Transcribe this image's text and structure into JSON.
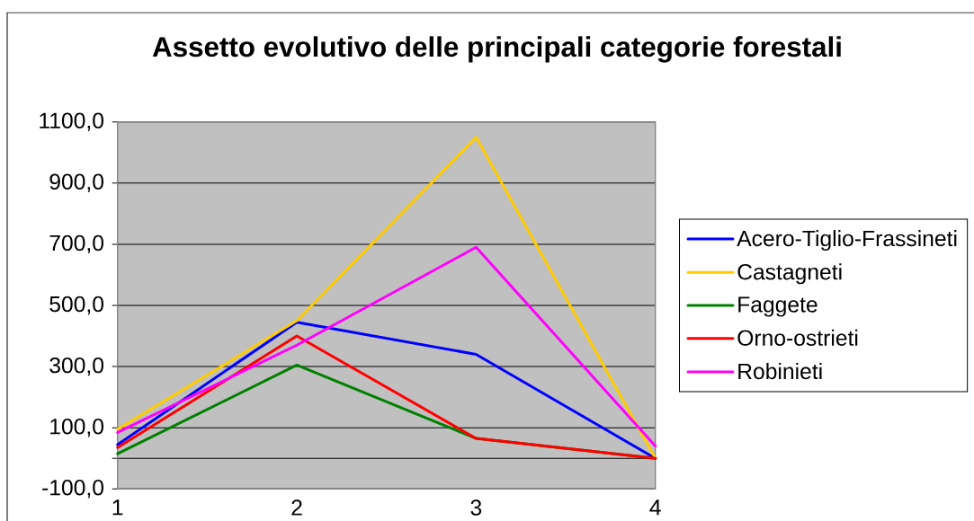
{
  "chart_data": {
    "type": "line",
    "title": "Assetto evolutivo delle principali categorie forestali",
    "categories": [
      "1",
      "2",
      "3",
      "4"
    ],
    "series": [
      {
        "name": "Acero-Tiglio-Frassineti",
        "color": "#0000ff",
        "values": [
          45,
          445,
          340,
          0
        ]
      },
      {
        "name": "Castagneti",
        "color": "#ffcc00",
        "values": [
          95,
          450,
          1050,
          0
        ]
      },
      {
        "name": "Faggete",
        "color": "#008000",
        "values": [
          15,
          305,
          65,
          0
        ]
      },
      {
        "name": "Orno-ostrieti",
        "color": "#ff0000",
        "values": [
          35,
          400,
          65,
          0
        ]
      },
      {
        "name": "Robinieti",
        "color": "#ff00ff",
        "values": [
          85,
          370,
          690,
          40
        ]
      }
    ],
    "ylim": [
      -100,
      1100
    ],
    "yticks": [
      {
        "value": -100,
        "label": "-100,0"
      },
      {
        "value": 0,
        "label": null
      },
      {
        "value": 100,
        "label": "100,0"
      },
      {
        "value": 300,
        "label": "300,0"
      },
      {
        "value": 500,
        "label": "500,0"
      },
      {
        "value": 700,
        "label": "700,0"
      },
      {
        "value": 900,
        "label": "900,0"
      },
      {
        "value": 1100,
        "label": "1100,0"
      }
    ],
    "grid": "y",
    "legend": "right",
    "line_style": "solid"
  }
}
